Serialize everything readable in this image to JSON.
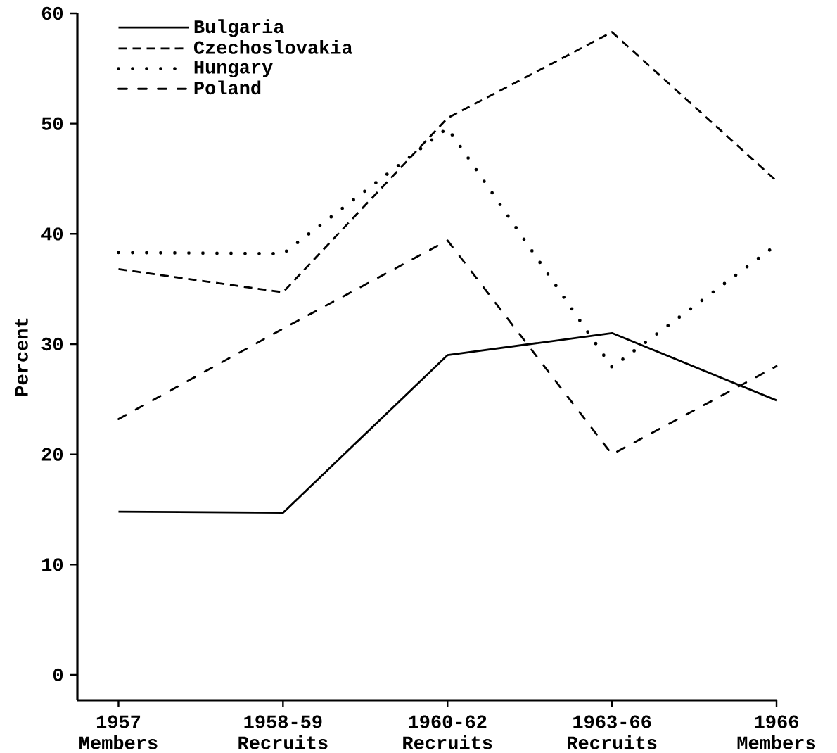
{
  "chart_data": {
    "type": "line",
    "ylabel": "Percent",
    "categories": [
      "1957 Members",
      "1958-59 Recruits",
      "1960-62 Recruits",
      "1963-66 Recruits",
      "1966 Members"
    ],
    "series": [
      {
        "name": "Bulgaria",
        "color": "#000000",
        "line_style": "solid",
        "values": [
          14.8,
          14.7,
          29.0,
          31.0,
          24.9
        ]
      },
      {
        "name": "Czechoslovakia",
        "color": "#000000",
        "line_style": "dashed",
        "values": [
          36.8,
          34.7,
          50.5,
          58.3,
          44.8
        ]
      },
      {
        "name": "Hungary",
        "color": "#000000",
        "line_style": "dotted",
        "values": [
          38.3,
          38.2,
          49.6,
          27.9,
          39.0
        ]
      },
      {
        "name": "Poland",
        "color": "#000000",
        "line_style": "dashdot",
        "values": [
          23.2,
          31.4,
          39.4,
          20.0,
          28.0
        ]
      }
    ],
    "ylim": [
      -2.3,
      60
    ],
    "yticks": [
      0,
      10,
      20,
      30,
      40,
      50,
      60
    ],
    "grid": false,
    "legend": "top left",
    "marker": "none"
  }
}
